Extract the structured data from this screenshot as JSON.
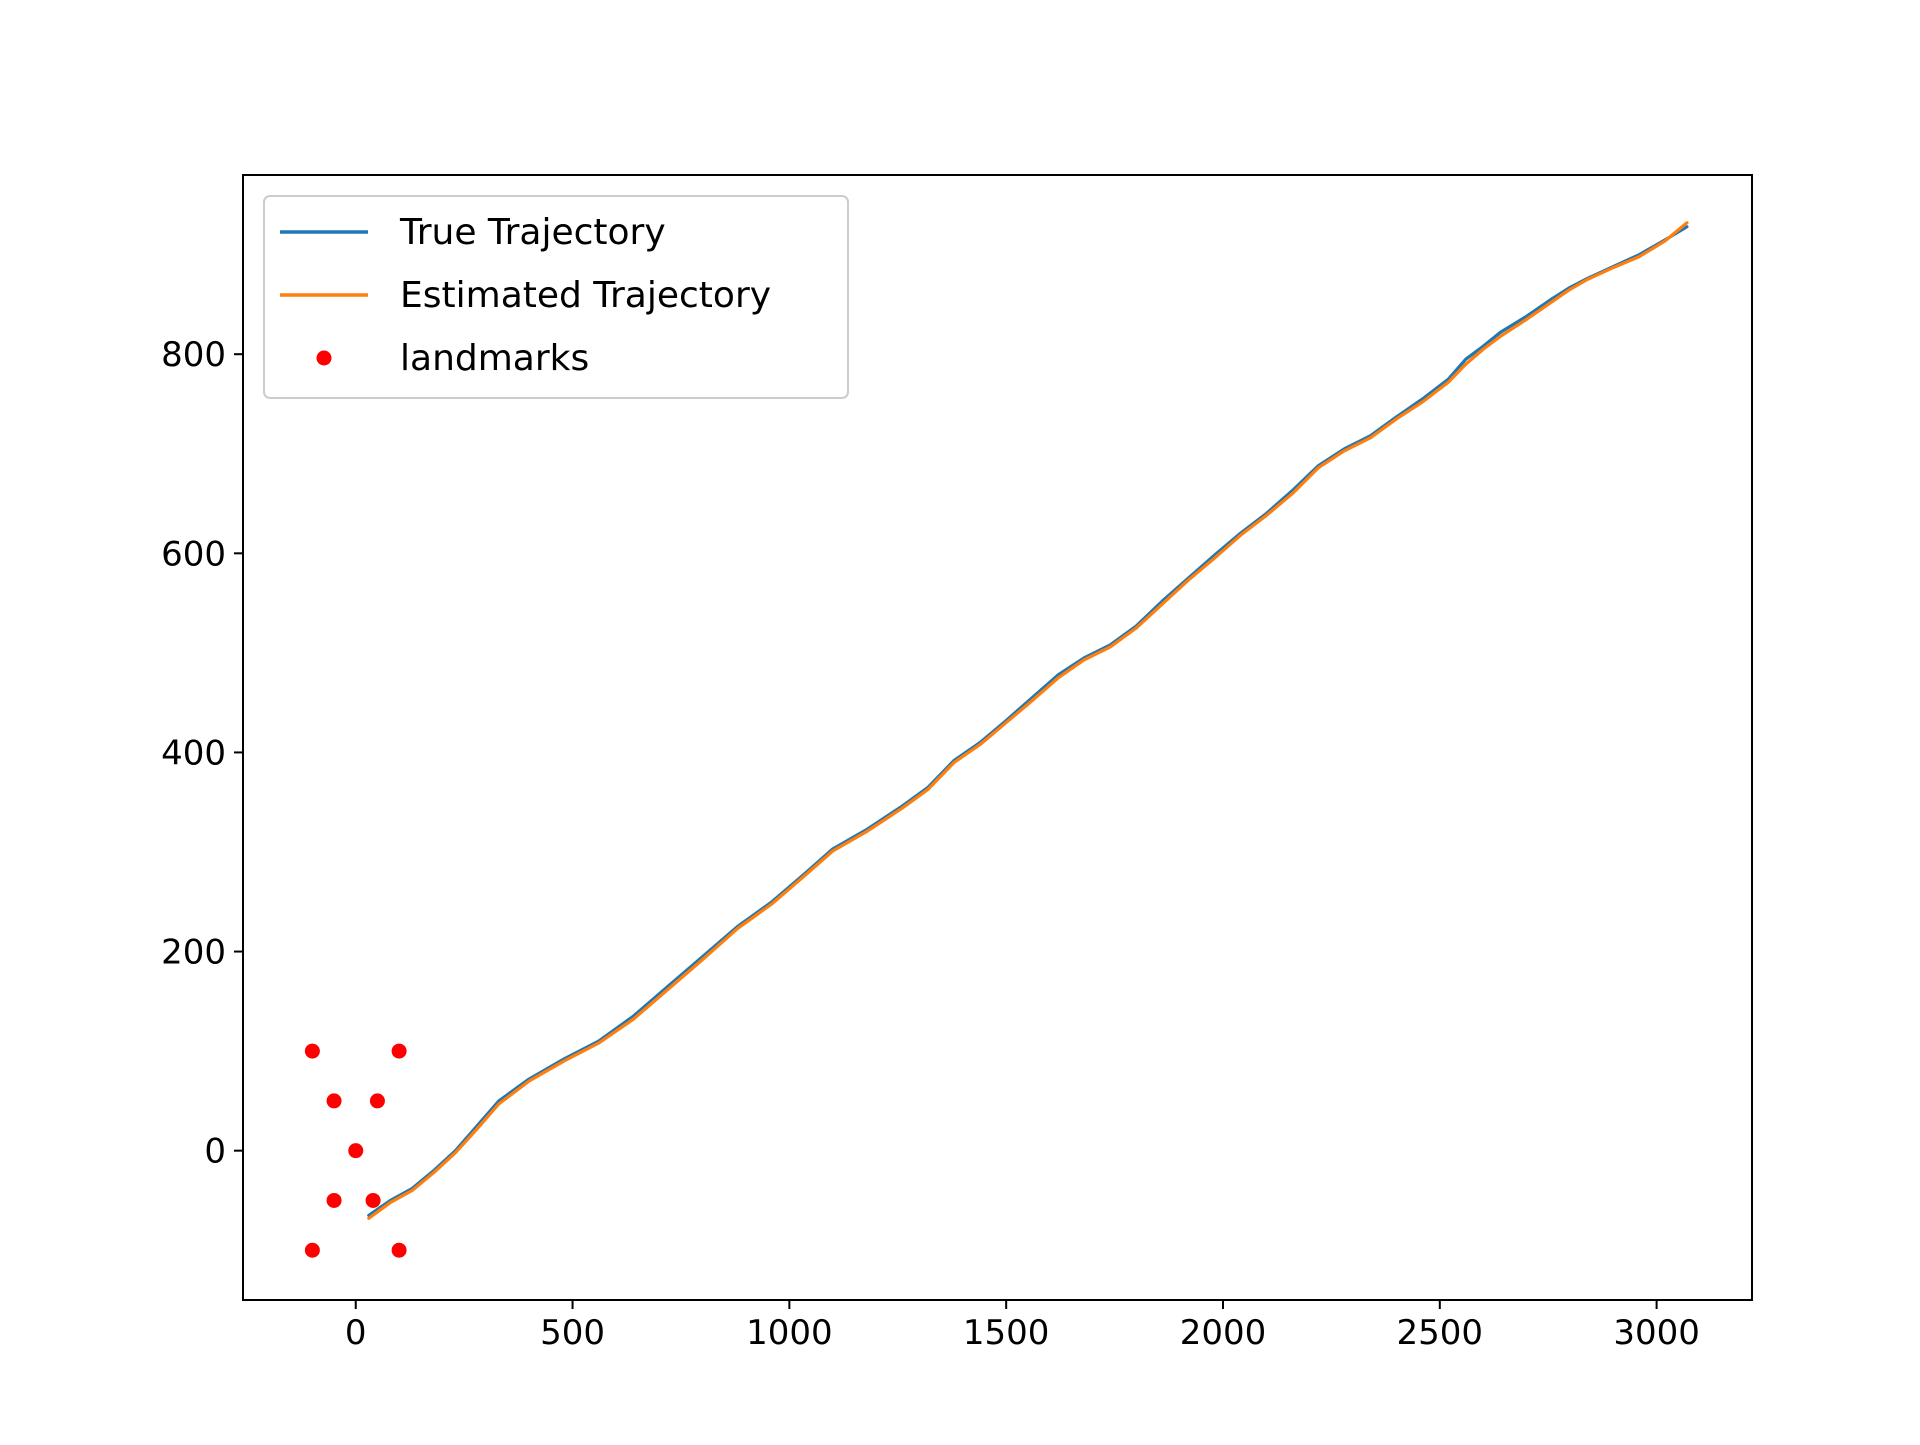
{
  "colors": {
    "true_line": "#1f77b4",
    "estimated_line": "#ff7f0e",
    "landmarks": "#ff0000",
    "axes": "#000000",
    "background": "#ffffff"
  },
  "chart_data": {
    "type": "line",
    "title": "",
    "xlabel": "",
    "ylabel": "",
    "xlim": [
      -260,
      3220
    ],
    "ylim": [
      -150,
      980
    ],
    "grid": false,
    "legend_position": "top-left",
    "xticks": [
      0,
      500,
      1000,
      1500,
      2000,
      2500,
      3000
    ],
    "yticks": [
      0,
      200,
      400,
      600,
      800
    ],
    "legend": [
      {
        "label": "True Trajectory",
        "kind": "line",
        "series": "true"
      },
      {
        "label": "Estimated Trajectory",
        "kind": "line",
        "series": "estimated"
      },
      {
        "label": "landmarks",
        "kind": "scatter",
        "series": "landmarks"
      }
    ],
    "series": [
      {
        "name": "True Trajectory",
        "key": "true",
        "x": [
          30,
          80,
          130,
          180,
          230,
          280,
          330,
          400,
          480,
          560,
          640,
          720,
          800,
          880,
          960,
          1040,
          1100,
          1180,
          1260,
          1320,
          1380,
          1440,
          1500,
          1560,
          1620,
          1680,
          1740,
          1800,
          1860,
          1920,
          1980,
          2040,
          2100,
          2160,
          2220,
          2280,
          2340,
          2400,
          2460,
          2520,
          2560,
          2600,
          2640,
          2700,
          2760,
          2800,
          2840,
          2900,
          2960,
          3020,
          3070
        ],
        "y": [
          -65,
          -50,
          -38,
          -20,
          0,
          25,
          50,
          72,
          92,
          110,
          135,
          165,
          195,
          225,
          250,
          280,
          303,
          323,
          346,
          365,
          392,
          410,
          432,
          455,
          478,
          495,
          508,
          527,
          552,
          575,
          598,
          620,
          640,
          663,
          688,
          705,
          718,
          737,
          755,
          775,
          795,
          808,
          822,
          838,
          856,
          867,
          876,
          888,
          900,
          915,
          928
        ]
      },
      {
        "name": "Estimated Trajectory",
        "key": "estimated",
        "x": [
          30,
          80,
          130,
          180,
          230,
          280,
          330,
          400,
          480,
          560,
          640,
          720,
          800,
          880,
          960,
          1040,
          1100,
          1180,
          1260,
          1320,
          1380,
          1440,
          1500,
          1560,
          1620,
          1680,
          1740,
          1800,
          1860,
          1920,
          1980,
          2040,
          2100,
          2160,
          2220,
          2280,
          2340,
          2400,
          2460,
          2520,
          2560,
          2600,
          2640,
          2700,
          2760,
          2800,
          2840,
          2900,
          2960,
          3020,
          3070
        ],
        "y": [
          -68,
          -52,
          -40,
          -22,
          -2,
          22,
          47,
          70,
          90,
          108,
          132,
          162,
          192,
          223,
          248,
          278,
          301,
          321,
          344,
          363,
          390,
          408,
          430,
          452,
          475,
          493,
          506,
          525,
          549,
          573,
          595,
          618,
          638,
          660,
          686,
          703,
          716,
          735,
          752,
          772,
          790,
          805,
          818,
          835,
          853,
          865,
          875,
          887,
          898,
          914,
          932
        ]
      }
    ],
    "landmarks": {
      "name": "landmarks",
      "x": [
        -100,
        100,
        -50,
        50,
        0,
        -50,
        40,
        -100,
        100
      ],
      "y": [
        100,
        100,
        50,
        50,
        0,
        -50,
        -50,
        -100,
        -100
      ]
    }
  }
}
